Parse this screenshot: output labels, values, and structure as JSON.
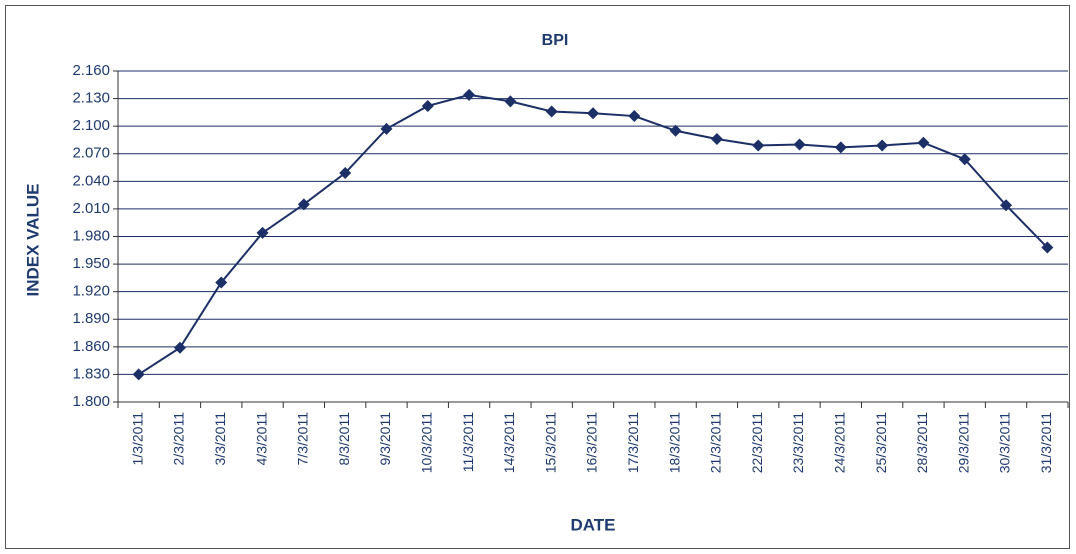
{
  "chart_data": {
    "type": "line",
    "title": "BPI",
    "x_label": "DATE",
    "y_label": "INDEX VALUE",
    "categories": [
      "1/3/2011",
      "2/3/2011",
      "3/3/2011",
      "4/3/2011",
      "7/3/2011",
      "8/3/2011",
      "9/3/2011",
      "10/3/2011",
      "11/3/2011",
      "14/3/2011",
      "15/3/2011",
      "16/3/2011",
      "17/3/2011",
      "18/3/2011",
      "21/3/2011",
      "22/3/2011",
      "23/3/2011",
      "24/3/2011",
      "25/3/2011",
      "28/3/2011",
      "29/3/2011",
      "30/3/2011",
      "31/3/2011"
    ],
    "values": [
      1830,
      1859,
      1930,
      1984,
      2015,
      2049,
      2097,
      2122,
      2134,
      2127,
      2116,
      2114,
      2111,
      2095,
      2086,
      2079,
      2080,
      2077,
      2079,
      2082,
      2064,
      2014,
      1968
    ],
    "color": "#1c2f66",
    "ylim": [
      1800,
      2160
    ],
    "yticks": [
      {
        "value": 1800,
        "label": "1.800"
      },
      {
        "value": 1830,
        "label": "1.830"
      },
      {
        "value": 1860,
        "label": "1.860"
      },
      {
        "value": 1890,
        "label": "1.890"
      },
      {
        "value": 1920,
        "label": "1.920"
      },
      {
        "value": 1950,
        "label": "1.950"
      },
      {
        "value": 1980,
        "label": "1.980"
      },
      {
        "value": 2010,
        "label": "2.010"
      },
      {
        "value": 2040,
        "label": "2.040"
      },
      {
        "value": 2070,
        "label": "2.070"
      },
      {
        "value": 2100,
        "label": "2.100"
      },
      {
        "value": 2130,
        "label": "2.130"
      },
      {
        "value": 2160,
        "label": "2.160"
      }
    ],
    "grid": true
  }
}
